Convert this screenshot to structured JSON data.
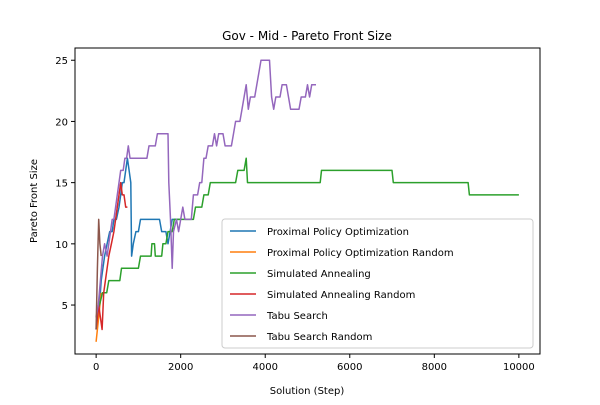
{
  "chart_data": {
    "type": "line",
    "title": "Gov - Mid - Pareto Front Size",
    "xlabel": "Solution (Step)",
    "ylabel": "Pareto Front Size",
    "xlim": [
      -500,
      10500
    ],
    "ylim": [
      1,
      26
    ],
    "xticks": [
      0,
      2000,
      4000,
      6000,
      8000,
      10000
    ],
    "yticks": [
      5,
      10,
      15,
      20,
      25
    ],
    "grid": false,
    "legend_position": "lower-right",
    "series": [
      {
        "name": "Proximal Policy Optimization",
        "color": "#1f77b4",
        "points": [
          [
            0,
            3
          ],
          [
            40,
            4
          ],
          [
            80,
            5
          ],
          [
            120,
            7
          ],
          [
            160,
            8
          ],
          [
            200,
            9
          ],
          [
            260,
            10
          ],
          [
            320,
            11
          ],
          [
            380,
            11
          ],
          [
            420,
            12
          ],
          [
            480,
            12
          ],
          [
            540,
            13
          ],
          [
            580,
            14
          ],
          [
            620,
            15
          ],
          [
            660,
            15
          ],
          [
            700,
            16
          ],
          [
            740,
            17
          ],
          [
            780,
            16
          ],
          [
            820,
            15
          ],
          [
            840,
            9
          ],
          [
            880,
            10
          ],
          [
            940,
            11
          ],
          [
            1000,
            11
          ],
          [
            1050,
            12
          ],
          [
            1150,
            12
          ],
          [
            1250,
            12
          ],
          [
            1500,
            12
          ],
          [
            1550,
            11
          ],
          [
            1650,
            11
          ],
          [
            1700,
            10
          ],
          [
            1750,
            11
          ],
          [
            1800,
            12
          ],
          [
            1900,
            12
          ],
          [
            2000,
            12
          ]
        ]
      },
      {
        "name": "Proximal Policy Optimization Random",
        "color": "#ff7f0e",
        "points": [
          [
            0,
            2
          ],
          [
            30,
            3
          ],
          [
            60,
            4
          ],
          [
            90,
            5
          ],
          [
            120,
            6
          ]
        ]
      },
      {
        "name": "Simulated Annealing",
        "color": "#2ca02c",
        "points": [
          [
            0,
            4
          ],
          [
            80,
            5
          ],
          [
            150,
            6
          ],
          [
            250,
            6
          ],
          [
            300,
            7
          ],
          [
            560,
            7
          ],
          [
            600,
            8
          ],
          [
            1000,
            8
          ],
          [
            1050,
            9
          ],
          [
            1300,
            9
          ],
          [
            1320,
            10
          ],
          [
            1380,
            10
          ],
          [
            1400,
            9
          ],
          [
            1550,
            9
          ],
          [
            1580,
            10
          ],
          [
            1650,
            10
          ],
          [
            1700,
            11
          ],
          [
            1800,
            11
          ],
          [
            1850,
            12
          ],
          [
            2300,
            12
          ],
          [
            2350,
            13
          ],
          [
            2500,
            13
          ],
          [
            2550,
            14
          ],
          [
            2650,
            14
          ],
          [
            2700,
            15
          ],
          [
            3300,
            15
          ],
          [
            3350,
            16
          ],
          [
            3500,
            16
          ],
          [
            3550,
            17
          ],
          [
            3580,
            15
          ],
          [
            5300,
            15
          ],
          [
            5330,
            16
          ],
          [
            7000,
            16
          ],
          [
            7030,
            15
          ],
          [
            8800,
            15
          ],
          [
            8830,
            14
          ],
          [
            10000,
            14
          ]
        ]
      },
      {
        "name": "Simulated Annealing Random",
        "color": "#d62728",
        "points": [
          [
            0,
            3
          ],
          [
            60,
            5
          ],
          [
            100,
            4
          ],
          [
            140,
            3
          ],
          [
            180,
            6
          ],
          [
            220,
            7
          ],
          [
            260,
            8
          ],
          [
            300,
            9
          ],
          [
            360,
            10
          ],
          [
            420,
            11
          ],
          [
            460,
            12
          ],
          [
            500,
            13
          ],
          [
            540,
            14
          ],
          [
            580,
            15
          ],
          [
            620,
            14
          ],
          [
            660,
            14
          ],
          [
            700,
            13
          ],
          [
            740,
            13
          ]
        ]
      },
      {
        "name": "Tabu Search",
        "color": "#9467bd",
        "points": [
          [
            0,
            4
          ],
          [
            50,
            5
          ],
          [
            100,
            7
          ],
          [
            150,
            9
          ],
          [
            200,
            10
          ],
          [
            260,
            9
          ],
          [
            300,
            10
          ],
          [
            340,
            11
          ],
          [
            380,
            12
          ],
          [
            420,
            12
          ],
          [
            460,
            13
          ],
          [
            500,
            14
          ],
          [
            540,
            15
          ],
          [
            580,
            16
          ],
          [
            640,
            16
          ],
          [
            680,
            17
          ],
          [
            720,
            17
          ],
          [
            760,
            18
          ],
          [
            800,
            17
          ],
          [
            900,
            17
          ],
          [
            1200,
            17
          ],
          [
            1250,
            18
          ],
          [
            1400,
            18
          ],
          [
            1450,
            19
          ],
          [
            1700,
            19
          ],
          [
            1720,
            15
          ],
          [
            1760,
            12
          ],
          [
            1800,
            8
          ],
          [
            1830,
            11
          ],
          [
            1900,
            12
          ],
          [
            1950,
            11
          ],
          [
            2000,
            12
          ],
          [
            2050,
            13
          ],
          [
            2100,
            12
          ],
          [
            2250,
            12
          ],
          [
            2300,
            14
          ],
          [
            2400,
            14
          ],
          [
            2450,
            15
          ],
          [
            2500,
            15
          ],
          [
            2550,
            17
          ],
          [
            2600,
            17
          ],
          [
            2650,
            18
          ],
          [
            2750,
            18
          ],
          [
            2800,
            19
          ],
          [
            2850,
            18
          ],
          [
            2900,
            19
          ],
          [
            3000,
            19
          ],
          [
            3050,
            18
          ],
          [
            3200,
            18
          ],
          [
            3250,
            19
          ],
          [
            3300,
            20
          ],
          [
            3400,
            20
          ],
          [
            3450,
            21
          ],
          [
            3500,
            22
          ],
          [
            3550,
            23
          ],
          [
            3600,
            21
          ],
          [
            3650,
            22
          ],
          [
            3750,
            22
          ],
          [
            3800,
            23
          ],
          [
            3850,
            24
          ],
          [
            3900,
            25
          ],
          [
            4100,
            25
          ],
          [
            4150,
            22
          ],
          [
            4200,
            21
          ],
          [
            4250,
            22
          ],
          [
            4350,
            22
          ],
          [
            4400,
            23
          ],
          [
            4500,
            23
          ],
          [
            4550,
            22
          ],
          [
            4600,
            21
          ],
          [
            4800,
            21
          ],
          [
            4850,
            22
          ],
          [
            4950,
            22
          ],
          [
            5000,
            23
          ],
          [
            5050,
            22
          ],
          [
            5100,
            23
          ],
          [
            5200,
            23
          ]
        ]
      },
      {
        "name": "Tabu Search Random",
        "color": "#8c564b",
        "points": [
          [
            0,
            3
          ],
          [
            30,
            8
          ],
          [
            60,
            12
          ],
          [
            90,
            10
          ],
          [
            120,
            9
          ]
        ]
      }
    ]
  }
}
